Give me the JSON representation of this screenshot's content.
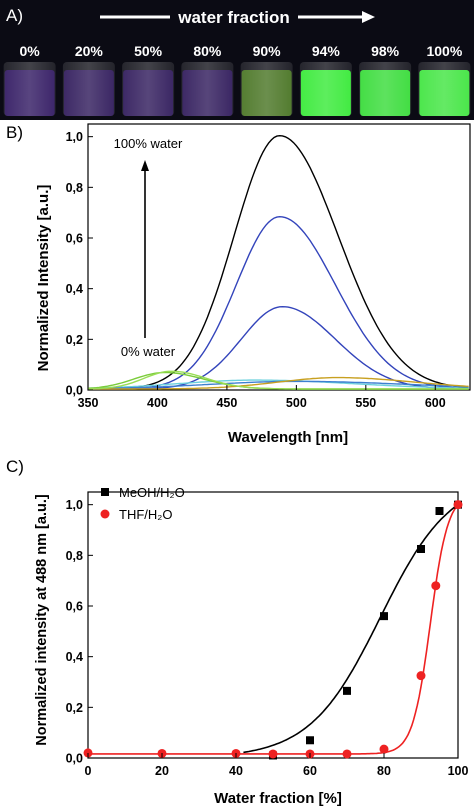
{
  "panel_a": {
    "label": "A)",
    "title": "water fraction",
    "vials": [
      {
        "label": "0%",
        "color": "#4b1f9a",
        "glow": 0.55
      },
      {
        "label": "20%",
        "color": "#4a1f98",
        "glow": 0.5
      },
      {
        "label": "50%",
        "color": "#4a1f98",
        "glow": 0.5
      },
      {
        "label": "80%",
        "color": "#4a1f98",
        "glow": 0.5
      },
      {
        "label": "90%",
        "color": "#74c22a",
        "glow": 0.55
      },
      {
        "label": "94%",
        "color": "#3cf53c",
        "glow": 0.95
      },
      {
        "label": "98%",
        "color": "#3ef23e",
        "glow": 0.9
      },
      {
        "label": "100%",
        "color": "#46f046",
        "glow": 0.95
      }
    ]
  },
  "chart_data": [
    {
      "panel_label": "B)",
      "type": "line",
      "xlabel": "Wavelength [nm]",
      "ylabel": "Normalized Intensity [a.u.]",
      "xlim": [
        350,
        625
      ],
      "ylim": [
        0,
        1.05
      ],
      "xticks": [
        350,
        400,
        450,
        500,
        550,
        600
      ],
      "yticks": [
        "0,0",
        "0,2",
        "0,4",
        "0,6",
        "0,8",
        "1,0"
      ],
      "annotations": [
        "100% water",
        "0% water"
      ],
      "series": [
        {
          "color": "#000000",
          "peak": 1.0,
          "center": 488,
          "width": 42
        },
        {
          "color": "#3344bb",
          "peak": 0.68,
          "center": 488,
          "width": 40
        },
        {
          "color": "#3344bb",
          "peak": 0.325,
          "center": 490,
          "width": 38
        },
        {
          "color": "#6bd0dc",
          "peak": 0.035,
          "center": 470,
          "width": 70
        },
        {
          "color": "#3d7fd0",
          "peak": 0.03,
          "center": 500,
          "width": 80
        },
        {
          "color": "#7acc3a",
          "peak": 0.065,
          "center": 405,
          "width": 28
        },
        {
          "color": "#c8a020",
          "peak": 0.045,
          "center": 530,
          "width": 55
        },
        {
          "color": "#99dd55",
          "peak": 0.07,
          "center": 410,
          "width": 25
        }
      ]
    },
    {
      "panel_label": "C)",
      "type": "scatter",
      "xlabel": "Water fraction [%]",
      "ylabel": "Normalized intensity at 488 nm [a.u.]",
      "xlim": [
        0,
        100
      ],
      "ylim": [
        0,
        1.05
      ],
      "xticks": [
        0,
        20,
        40,
        60,
        80,
        100
      ],
      "yticks": [
        "0,0",
        "0,2",
        "0,4",
        "0,6",
        "0,8",
        "1,0"
      ],
      "legend_position": "top-left",
      "series": [
        {
          "legend": "MeOH/H₂O",
          "marker": "square",
          "color": "#000000",
          "points": [
            [
              50,
              0.01
            ],
            [
              60,
              0.07
            ],
            [
              70,
              0.265
            ],
            [
              80,
              0.56
            ],
            [
              90,
              0.825
            ],
            [
              95,
              0.975
            ],
            [
              100,
              1.0
            ]
          ],
          "fit": {
            "x0": 79,
            "k": 0.105
          }
        },
        {
          "legend": "THF/H₂O",
          "marker": "circle",
          "color": "#ee2222",
          "points": [
            [
              0,
              0.02
            ],
            [
              20,
              0.018
            ],
            [
              40,
              0.018
            ],
            [
              50,
              0.016
            ],
            [
              60,
              0.016
            ],
            [
              70,
              0.016
            ],
            [
              80,
              0.035
            ],
            [
              90,
              0.325
            ],
            [
              94,
              0.68
            ],
            [
              100,
              1.0
            ]
          ],
          "fit": {
            "x0": 92.5,
            "k": 0.42
          }
        }
      ]
    }
  ]
}
